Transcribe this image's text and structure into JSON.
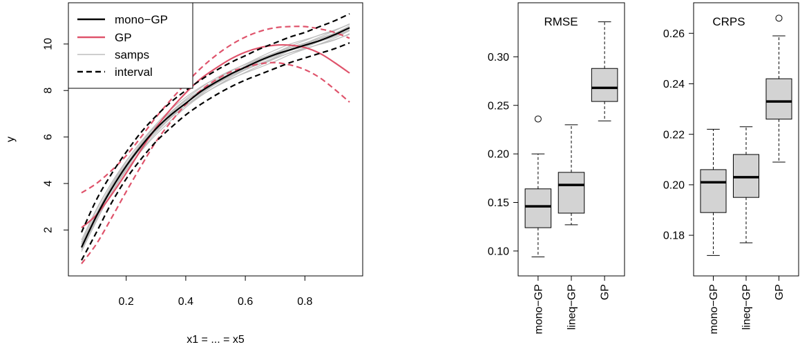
{
  "chart_data": [
    {
      "type": "line",
      "xlabel": "x1 = ... = x5",
      "ylabel": "y",
      "xlim": [
        0.05,
        0.95
      ],
      "ylim": [
        0.5,
        11.3
      ],
      "xticks": [
        "0.2",
        "0.4",
        "0.6",
        "0.8"
      ],
      "yticks": [
        "2",
        "4",
        "6",
        "8",
        "10"
      ],
      "legend": {
        "placement": "top-left",
        "entries": [
          {
            "label": "mono−GP",
            "color": "#000000",
            "style": "solid"
          },
          {
            "label": "GP",
            "color": "#DF536B",
            "style": "solid"
          },
          {
            "label": "samps",
            "color": "#BEBEBE",
            "style": "solid"
          },
          {
            "label": "interval",
            "color": "#000000",
            "style": "dashed"
          }
        ]
      },
      "x": [
        0.05,
        0.1,
        0.15,
        0.2,
        0.25,
        0.3,
        0.35,
        0.4,
        0.45,
        0.5,
        0.55,
        0.6,
        0.65,
        0.7,
        0.75,
        0.8,
        0.85,
        0.9,
        0.95
      ],
      "series": [
        {
          "name": "mono−GP",
          "color": "#000000",
          "style": "solid",
          "values": [
            1.25,
            2.6,
            3.75,
            4.75,
            5.6,
            6.35,
            6.95,
            7.45,
            7.95,
            8.35,
            8.7,
            9.0,
            9.3,
            9.55,
            9.75,
            9.95,
            10.15,
            10.4,
            10.7
          ]
        },
        {
          "name": "mono−GP upper",
          "color": "#000000",
          "style": "dashed",
          "values": [
            1.9,
            3.3,
            4.4,
            5.35,
            6.2,
            6.9,
            7.5,
            8.0,
            8.45,
            8.85,
            9.2,
            9.5,
            9.8,
            10.05,
            10.3,
            10.5,
            10.75,
            11.0,
            11.3
          ]
        },
        {
          "name": "mono−GP lower",
          "color": "#000000",
          "style": "dashed",
          "values": [
            0.7,
            1.9,
            3.15,
            4.2,
            5.05,
            5.8,
            6.4,
            6.95,
            7.4,
            7.8,
            8.15,
            8.45,
            8.7,
            8.95,
            9.2,
            9.4,
            9.6,
            9.8,
            10.05
          ]
        },
        {
          "name": "GP",
          "color": "#DF536B",
          "style": "solid",
          "values": [
            2.1,
            2.65,
            3.5,
            4.45,
            5.45,
            6.4,
            7.2,
            7.9,
            8.5,
            8.95,
            9.35,
            9.65,
            9.85,
            9.95,
            9.95,
            9.85,
            9.6,
            9.2,
            8.75
          ]
        },
        {
          "name": "GP upper",
          "color": "#DF536B",
          "style": "dashed",
          "values": [
            3.6,
            4.0,
            4.55,
            5.2,
            6.0,
            6.85,
            7.6,
            8.3,
            8.95,
            9.5,
            9.95,
            10.3,
            10.55,
            10.7,
            10.75,
            10.75,
            10.65,
            10.5,
            10.25
          ]
        },
        {
          "name": "GP lower",
          "color": "#DF536B",
          "style": "dashed",
          "values": [
            0.55,
            1.4,
            2.5,
            3.65,
            4.75,
            5.8,
            6.65,
            7.4,
            8.0,
            8.45,
            8.8,
            9.0,
            9.15,
            9.2,
            9.1,
            8.9,
            8.55,
            8.05,
            7.5
          ]
        }
      ]
    },
    {
      "type": "box",
      "title": "RMSE",
      "ylim": [
        0.085,
        0.345
      ],
      "yticks": [
        "0.10",
        "0.15",
        "0.20",
        "0.25",
        "0.30"
      ],
      "categories": [
        "mono−GP",
        "lineq−GP",
        "GP"
      ],
      "boxes": [
        {
          "whisker_low": 0.094,
          "q1": 0.124,
          "median": 0.146,
          "q3": 0.164,
          "whisker_high": 0.2,
          "outliers": [
            0.236
          ]
        },
        {
          "whisker_low": 0.127,
          "q1": 0.139,
          "median": 0.168,
          "q3": 0.181,
          "whisker_high": 0.23,
          "outliers": []
        },
        {
          "whisker_low": 0.234,
          "q1": 0.254,
          "median": 0.268,
          "q3": 0.288,
          "whisker_high": 0.336,
          "outliers": []
        }
      ]
    },
    {
      "type": "box",
      "title": "CRPS",
      "ylim": [
        0.168,
        0.268
      ],
      "yticks": [
        "0.18",
        "0.20",
        "0.22",
        "0.24",
        "0.26"
      ],
      "categories": [
        "mono−GP",
        "lineq−GP",
        "GP"
      ],
      "boxes": [
        {
          "whisker_low": 0.172,
          "q1": 0.189,
          "median": 0.201,
          "q3": 0.206,
          "whisker_high": 0.222,
          "outliers": []
        },
        {
          "whisker_low": 0.177,
          "q1": 0.195,
          "median": 0.203,
          "q3": 0.212,
          "whisker_high": 0.223,
          "outliers": []
        },
        {
          "whisker_low": 0.209,
          "q1": 0.226,
          "median": 0.233,
          "q3": 0.242,
          "whisker_high": 0.259,
          "outliers": [
            0.266
          ]
        }
      ]
    }
  ]
}
